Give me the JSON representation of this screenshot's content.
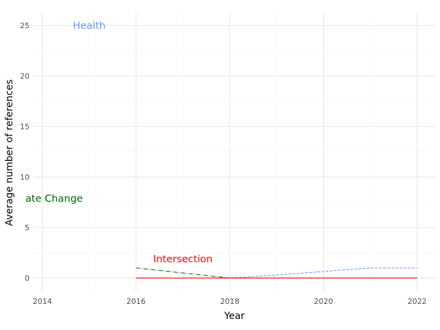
{
  "chart_data": {
    "type": "line",
    "xlabel": "Year",
    "ylabel": "Average number of references",
    "xlim": [
      2013.8,
      2022.4
    ],
    "ylim": [
      -1.4,
      26.3
    ],
    "x_ticks": [
      2014,
      2016,
      2018,
      2020,
      2022
    ],
    "y_ticks": [
      0,
      5,
      10,
      15,
      20,
      25
    ],
    "grid": true,
    "series": [
      {
        "color": "#6699ff",
        "dash": "dashed",
        "x": [
          2016,
          2017,
          2018,
          2019,
          2020,
          2021,
          2022
        ],
        "values": [
          0,
          0,
          0,
          0.3,
          0.65,
          1.0,
          1.0
        ]
      },
      {
        "color": "#006400",
        "dash": "dashdot",
        "x": [
          2016,
          2017,
          2018,
          2019,
          2020,
          2021,
          2022
        ],
        "values": [
          1.0,
          0.5,
          0,
          0,
          0,
          0,
          0
        ]
      },
      {
        "color": "#ff0000",
        "dash": "solid",
        "x": [
          2016,
          2017,
          2018,
          2019,
          2020,
          2021,
          2022
        ],
        "values": [
          0,
          0,
          0,
          0,
          0,
          0,
          0
        ]
      }
    ],
    "annotations": [
      {
        "text": "Health",
        "x": 2015.0,
        "y": 25.0,
        "color": "#6699ff"
      },
      {
        "text": "ate Change",
        "x": 2014.25,
        "y": 7.9,
        "color": "#006400"
      },
      {
        "text": "Intersection",
        "x": 2017.0,
        "y": 1.9,
        "color": "#ff0000"
      }
    ]
  }
}
